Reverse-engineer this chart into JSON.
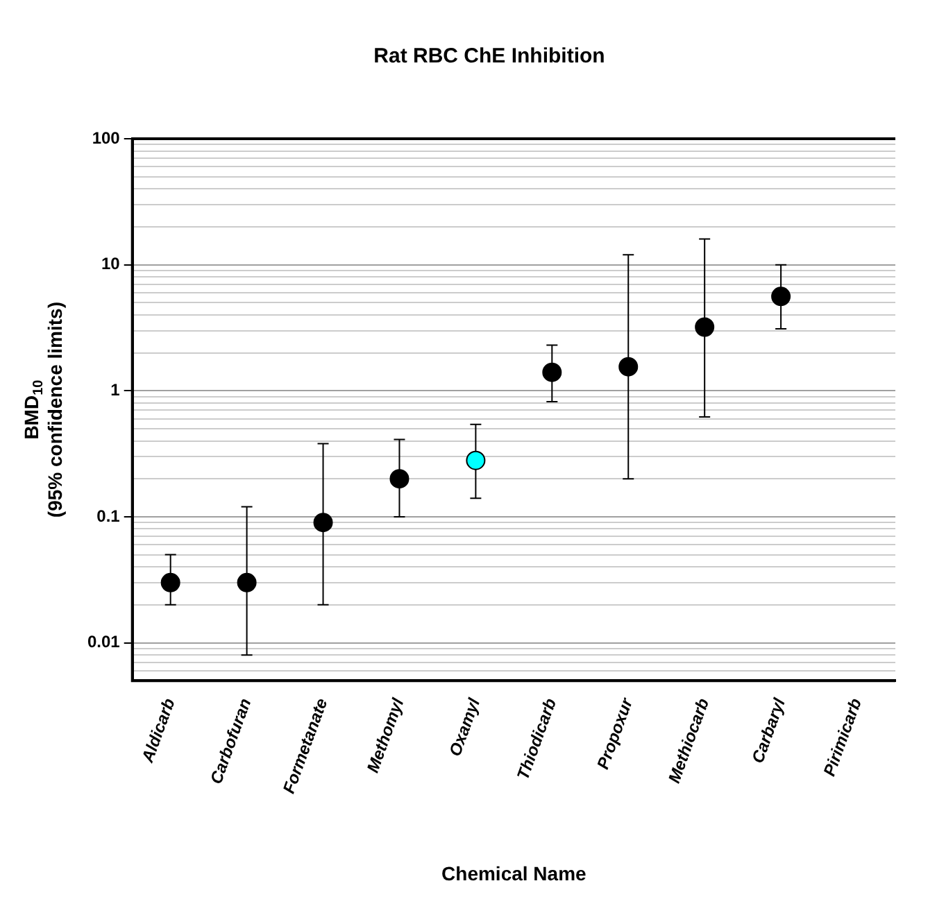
{
  "chart_data": {
    "type": "scatter",
    "title": "Rat RBC ChE Inhibition",
    "xlabel": "Chemical Name",
    "ylabel": "BMD$_{10}$\n(95% confidence limits)",
    "categories": [
      "Aldicarb",
      "Carbofuran",
      "Formetanate",
      "Methomyl",
      "Oxamyl",
      "Thiodicarb",
      "Propoxur",
      "Methiocarb",
      "Carbaryl",
      "Pirimicarb"
    ],
    "values": [
      0.03,
      0.03,
      0.09,
      0.2,
      0.28,
      1.4,
      1.55,
      3.2,
      5.6,
      null
    ],
    "colors": [
      "#000000",
      "#000000",
      "#000000",
      "#000000",
      "#00ffff",
      "#000000",
      "#000000",
      "#000000",
      "#000000",
      "#000000"
    ],
    "errors": [
      [
        0.02,
        0.05
      ],
      [
        0.008,
        0.12
      ],
      [
        0.02,
        0.38
      ],
      [
        0.1,
        0.41
      ],
      [
        0.14,
        0.54
      ],
      [
        0.82,
        2.3
      ],
      [
        0.2,
        12
      ],
      [
        0.62,
        16
      ],
      [
        3.1,
        10
      ],
      null
    ],
    "log": "y",
    "ylim": [
      0.005,
      100
    ],
    "yticks": [
      {
        "value": 0.006,
        "label": null
      },
      {
        "value": 0.007,
        "label": null
      },
      {
        "value": 0.008,
        "label": null
      },
      {
        "value": 0.009,
        "label": null
      },
      {
        "value": 0.01,
        "label": "0.01"
      },
      {
        "value": 0.02,
        "label": null
      },
      {
        "value": 0.03,
        "label": null
      },
      {
        "value": 0.04,
        "label": null
      },
      {
        "value": 0.05,
        "label": null
      },
      {
        "value": 0.06,
        "label": null
      },
      {
        "value": 0.07,
        "label": null
      },
      {
        "value": 0.08,
        "label": null
      },
      {
        "value": 0.09,
        "label": null
      },
      {
        "value": 0.1,
        "label": "0.1"
      },
      {
        "value": 0.2,
        "label": null
      },
      {
        "value": 0.3,
        "label": null
      },
      {
        "value": 0.4,
        "label": null
      },
      {
        "value": 0.5,
        "label": null
      },
      {
        "value": 0.6,
        "label": null
      },
      {
        "value": 0.7,
        "label": null
      },
      {
        "value": 0.8,
        "label": null
      },
      {
        "value": 0.9,
        "label": null
      },
      1,
      {
        "value": 2,
        "label": null
      },
      {
        "value": 3,
        "label": null
      },
      {
        "value": 4,
        "label": null
      },
      {
        "value": 5,
        "label": null
      },
      {
        "value": 6,
        "label": null
      },
      {
        "value": 7,
        "label": null
      },
      {
        "value": 8,
        "label": null
      },
      {
        "value": 9,
        "label": null
      },
      10,
      {
        "value": 20,
        "label": null
      },
      {
        "value": 30,
        "label": null
      },
      {
        "value": 40,
        "label": null
      },
      {
        "value": 50,
        "label": null
      },
      {
        "value": 60,
        "label": null
      },
      {
        "value": 70,
        "label": null
      },
      {
        "value": 80,
        "label": null
      },
      {
        "value": 90,
        "label": null
      },
      100
    ],
    "grid": "y",
    "marker": "circle",
    "legend": false
  }
}
